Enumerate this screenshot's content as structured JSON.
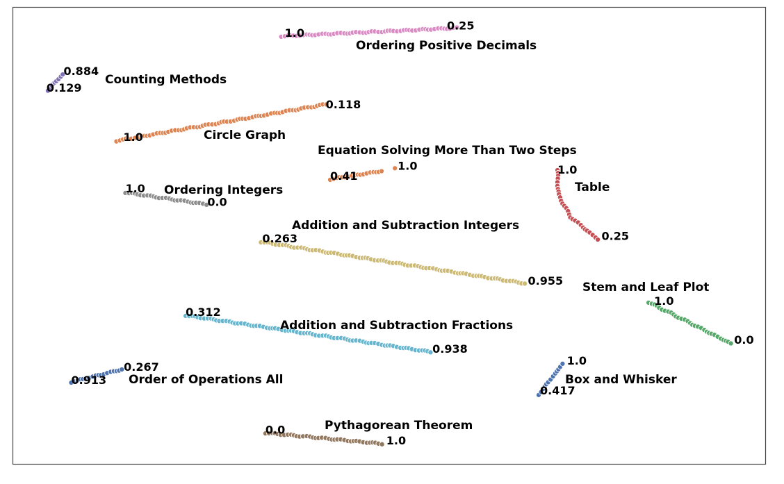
{
  "chart_data": {
    "type": "scatter",
    "title": "",
    "xlabel": "",
    "ylabel": "",
    "xlim": [
      0,
      100
    ],
    "ylim": [
      0,
      100
    ],
    "grid": false,
    "legend": "none",
    "series": [
      {
        "name": "Ordering Positive Decimals",
        "color": "#da8bc3",
        "path": [
          [
            35.7,
            93.6
          ],
          [
            59.0,
            95.4
          ]
        ],
        "start_label": "1.0",
        "end_label": "0.25"
      },
      {
        "name": "Counting Methods",
        "color": "#8172b3",
        "path": [
          [
            4.7,
            81.8
          ],
          [
            6.6,
            85.1
          ]
        ],
        "start_label": "0.129",
        "end_label": "0.884"
      },
      {
        "name": "Circle Graph",
        "color": "#dd8452",
        "path": [
          [
            13.8,
            70.7
          ],
          [
            41.7,
            78.7
          ]
        ],
        "start_label": "1.0",
        "end_label": "0.118"
      },
      {
        "name": "Equation Solving More Than Two Steps",
        "color": "#dd8452",
        "path": [
          [
            42.2,
            62.3
          ],
          [
            49.1,
            64.1
          ]
        ],
        "start_label": "0.41",
        "end_label": "1.0",
        "end_point": [
          50.8,
          64.7
        ]
      },
      {
        "name": "Ordering Integers",
        "color": "#8c8c8c",
        "path": [
          [
            15.0,
            59.4
          ],
          [
            25.7,
            56.8
          ]
        ],
        "start_label": "1.0",
        "end_label": "0.0"
      },
      {
        "name": "Table",
        "color": "#c44e52",
        "path": [
          [
            72.4,
            64.4
          ],
          [
            72.5,
            59.0
          ],
          [
            74.1,
            54.1
          ],
          [
            77.7,
            49.2
          ]
        ],
        "start_label": "1.0",
        "end_label": "0.25"
      },
      {
        "name": "Addition and Subtraction Integers",
        "color": "#ccb974",
        "path": [
          [
            33.0,
            48.6
          ],
          [
            68.1,
            39.5
          ]
        ],
        "start_label": "0.263",
        "end_label": "0.955"
      },
      {
        "name": "Stem and Leaf Plot",
        "color": "#55a868",
        "path": [
          [
            84.5,
            35.4
          ],
          [
            95.5,
            26.3
          ]
        ],
        "start_label": "1.0",
        "end_label": "0.0"
      },
      {
        "name": "Addition and Subtraction Fractions",
        "color": "#64b5cd",
        "path": [
          [
            23.0,
            32.5
          ],
          [
            55.6,
            24.5
          ]
        ],
        "start_label": "0.312",
        "end_label": "0.938"
      },
      {
        "name": "Order of Operations All",
        "color": "#4c72b0",
        "path": [
          [
            7.8,
            17.9
          ],
          [
            14.6,
            20.7
          ]
        ],
        "start_label": "0.913",
        "end_label": "0.267"
      },
      {
        "name": "Box and Whisker",
        "color": "#4c72b0",
        "path": [
          [
            69.9,
            15.2
          ],
          [
            73.1,
            21.9
          ]
        ],
        "start_label": "0.417",
        "end_label": "1.0"
      },
      {
        "name": "Pythagorean Theorem",
        "color": "#937860",
        "path": [
          [
            33.6,
            6.8
          ],
          [
            49.1,
            4.4
          ]
        ],
        "start_label": "0.0",
        "end_label": "1.0"
      }
    ]
  }
}
